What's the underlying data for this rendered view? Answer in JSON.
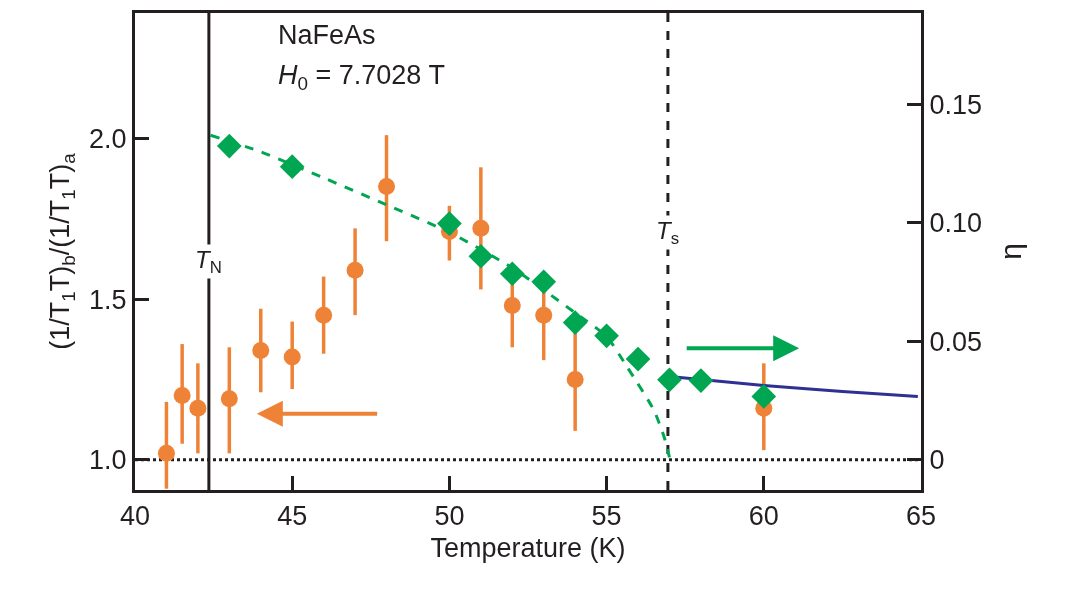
{
  "chart_data": {
    "type": "scatter",
    "xlabel": "Temperature (K)",
    "ylabel": "(1/T$_{1}$T)$_{b}$/(1/T$_{1}$T)$_{a}$",
    "y2label": "η",
    "annotations": [
      "NaFeAs",
      "H$_{0}$ = 7.7028 T"
    ],
    "xlim": [
      40,
      65
    ],
    "xticks": [
      40,
      45,
      50,
      55,
      60,
      65
    ],
    "ylim": [
      0.906,
      2.39
    ],
    "yticks": [
      {
        "value": 1.0,
        "label": "1.0"
      },
      1.5,
      {
        "value": 2.0,
        "label": "2.0"
      }
    ],
    "y2lim": [
      -0.0128,
      0.1886
    ],
    "y2ticks": [
      0,
      0.05,
      {
        "value": 0.1,
        "label": "0.10"
      },
      0.15
    ],
    "grid": false,
    "ref_lines": [
      {
        "axis": "x",
        "value": 42.35,
        "label": "T$_{N}$",
        "color": "#231f20",
        "line_style": "solid"
      },
      {
        "axis": "x",
        "value": 56.95,
        "label": "T$_{s}$",
        "color": "#231f20",
        "line_style": "dashed"
      },
      {
        "axis": "y",
        "value": 1.0,
        "color": "#231f20",
        "line_style": "dotted"
      }
    ],
    "series": [
      {
        "color": "#ee8237",
        "marker": "circle",
        "x": [
          41.0,
          41.5,
          42.0,
          43.0,
          44.0,
          45.0,
          46.0,
          47.0,
          48.0,
          50.0,
          51.0,
          52.0,
          53.0,
          54.0,
          60.0
        ],
        "values": [
          1.02,
          1.2,
          1.16,
          1.19,
          1.34,
          1.32,
          1.45,
          1.59,
          1.85,
          1.71,
          1.72,
          1.48,
          1.45,
          1.25,
          1.16
        ],
        "errors": [
          [
            0.91,
            1.18
          ],
          [
            1.05,
            1.36
          ],
          [
            1.02,
            1.3
          ],
          [
            1.02,
            1.35
          ],
          [
            1.21,
            1.47
          ],
          [
            1.22,
            1.43
          ],
          [
            1.33,
            1.57
          ],
          [
            1.45,
            1.72
          ],
          [
            1.68,
            2.01
          ],
          [
            1.62,
            1.79
          ],
          [
            1.53,
            1.91
          ],
          [
            1.35,
            1.61
          ],
          [
            1.31,
            1.58
          ],
          [
            1.09,
            1.4
          ],
          [
            1.03,
            1.3
          ]
        ]
      },
      {
        "type": "line",
        "axis": "y2",
        "color": "#00a651",
        "line_style": "dashed",
        "marker": "none",
        "x": [
          42.4,
          44,
          46,
          48,
          50,
          52,
          54,
          55,
          55.66,
          56.5,
          56.83,
          57.0
        ],
        "values": [
          0.137,
          0.13,
          0.119,
          0.1076,
          0.096,
          0.081,
          0.062,
          0.052,
          0.039,
          0.021,
          0.0096,
          0.001
        ]
      },
      {
        "type": "line",
        "axis": "y2",
        "color": "#2e3192",
        "line_style": "solid",
        "marker": "none",
        "x": [
          57.25,
          60,
          62.5,
          64.9
        ],
        "values": [
          0.0348,
          0.0313,
          0.0288,
          0.0267
        ]
      },
      {
        "axis": "y2",
        "color": "#00a651",
        "marker": "diamond",
        "x": [
          43,
          45,
          50,
          51,
          52,
          53,
          54,
          55,
          56,
          57,
          58,
          60
        ],
        "values": [
          0.1324,
          0.1237,
          0.0997,
          0.0859,
          0.0785,
          0.0751,
          0.0579,
          0.0523,
          0.0425,
          0.0337,
          0.0334,
          0.0267
        ]
      }
    ]
  }
}
